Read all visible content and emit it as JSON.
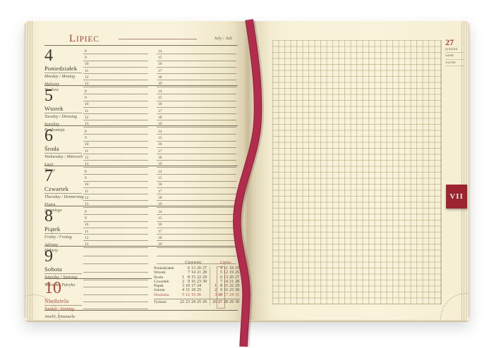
{
  "page": {
    "month": "Lipiec",
    "month_alt": "July / Juli"
  },
  "week_box": {
    "number": "27",
    "labels": [
      "tydzień",
      "week",
      "woche"
    ]
  },
  "side_tab": {
    "label": "VII"
  },
  "times": {
    "morning": [
      "8",
      "9",
      "10",
      "11",
      "12",
      "13"
    ],
    "afternoon": [
      "14",
      "15",
      "16",
      "17",
      "18",
      "19"
    ]
  },
  "days": [
    {
      "num": "4",
      "name": "Poniedziałek",
      "alt": "Monday / Montag",
      "saints": "Malwiny\nTeodora"
    },
    {
      "num": "5",
      "name": "Wtorek",
      "alt": "Tuesday / Dienstag",
      "saints": "Karoliny\nBartłomieja"
    },
    {
      "num": "6",
      "name": "Środa",
      "alt": "Wednesday / Mittwoch",
      "saints": "Łucji\nTeresy"
    },
    {
      "num": "7",
      "name": "Czwartek",
      "alt": "Thursday / Donnerstag",
      "saints": "Piotra\nAntoniego"
    },
    {
      "num": "8",
      "name": "Piątek",
      "alt": "Friday / Freitag",
      "saints": "Adriany\nElżbiety"
    },
    {
      "num": "9",
      "name": "Sobota",
      "alt": "Saturday / Samstag",
      "saints": "Weroniki, Patryka"
    },
    {
      "num": "10",
      "name": "Niedziela",
      "alt": "Sunday / Sonntag",
      "saints": "Amelii, Emanuela"
    }
  ],
  "mini_calendar": {
    "month_left": "Czerwiec",
    "month_right": "Lipiec",
    "rows": [
      {
        "label": "Poniedziałek",
        "left": [
          "",
          "6",
          "13",
          "20",
          "27"
        ],
        "right": [
          "",
          "4",
          "11",
          "18",
          "25"
        ]
      },
      {
        "label": "Wtorek",
        "left": [
          "",
          "7",
          "14",
          "21",
          "28"
        ],
        "right": [
          "",
          "5",
          "12",
          "19",
          "26"
        ]
      },
      {
        "label": "Środa",
        "left": [
          "1",
          "8",
          "15",
          "22",
          "29"
        ],
        "right": [
          "",
          "6",
          "13",
          "20",
          "27"
        ]
      },
      {
        "label": "Czwartek",
        "left": [
          "2",
          "9",
          "16",
          "23",
          "30"
        ],
        "right": [
          "",
          "7",
          "14",
          "21",
          "28"
        ]
      },
      {
        "label": "Piątek",
        "left": [
          "3",
          "10",
          "17",
          "24",
          ""
        ],
        "right": [
          "1",
          "8",
          "15",
          "22",
          "29"
        ]
      },
      {
        "label": "Sobota",
        "left": [
          "4",
          "11",
          "18",
          "25",
          ""
        ],
        "right": [
          "2",
          "9",
          "16",
          "23",
          "30"
        ]
      },
      {
        "label": "Niedziela",
        "left": [
          "5",
          "12",
          "19",
          "26",
          ""
        ],
        "right": [
          "3",
          "10",
          "17",
          "24",
          "31"
        ],
        "sunday": true
      }
    ],
    "week_row": {
      "label": "Tydzień",
      "left": [
        "22",
        "23",
        "24",
        "25",
        "26"
      ],
      "right": [
        "26",
        "27",
        "28",
        "29",
        "30"
      ]
    },
    "current_week": "27",
    "current_day": "10"
  },
  "colors": {
    "accent": "#a84238",
    "sunday": "#b04a3e",
    "ribbon": "#b22c4d",
    "ribbon_dark": "#8e1e3c",
    "tab": "#9c2330",
    "ink": "#3e362a",
    "page": "#f8f2da"
  }
}
